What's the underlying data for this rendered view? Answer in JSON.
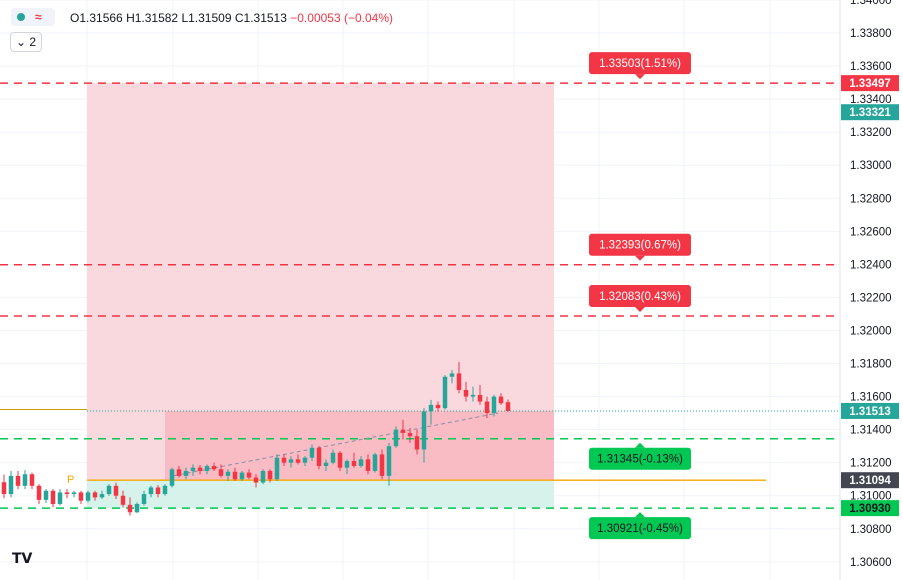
{
  "legend": {
    "open": "O1.31566",
    "high": "H1.31582",
    "low": "L1.31509",
    "close": "C1.31513",
    "change": "−0.00053 (−0.04%)"
  },
  "indicator_toggle": {
    "icon": "eye-wave-icon",
    "collapse_label": "⌄ 2"
  },
  "logo": "TV",
  "colors": {
    "up": "#26a69a",
    "down": "#f23645",
    "zone_loss": "#f9d5da",
    "zone_profit": "#d6f2ea",
    "grid": "#f0f3fa",
    "orange": "#f7a600",
    "green": "#00c853",
    "red": "#f23645"
  },
  "chart_data": {
    "type": "candlestick",
    "price_axis": {
      "ylim": [
        1.3049,
        1.34
      ],
      "ticks": [
        "1.34000",
        "1.33800",
        "1.33600",
        "1.33400",
        "1.33200",
        "1.33000",
        "1.32800",
        "1.32600",
        "1.32400",
        "1.32200",
        "1.32000",
        "1.31800",
        "1.31600",
        "1.31400",
        "1.31200",
        "1.31000",
        "1.30800",
        "1.30600"
      ],
      "tick_values": [
        1.34,
        1.338,
        1.336,
        1.334,
        1.332,
        1.33,
        1.328,
        1.326,
        1.324,
        1.322,
        1.32,
        1.318,
        1.316,
        1.314,
        1.312,
        1.31,
        1.308,
        1.306
      ]
    },
    "levels": [
      {
        "price": 1.33497,
        "label": "1.33503(1.51%)",
        "color": "red",
        "axis_label": "1.33497"
      },
      {
        "price": 1.32398,
        "label": "1.32393(0.67%)",
        "color": "red"
      },
      {
        "price": 1.32088,
        "label": "1.32083(0.43%)",
        "color": "red"
      },
      {
        "price": 1.31345,
        "label": "1.31345(-0.13%)",
        "color": "green"
      },
      {
        "price": 1.30925,
        "label": "1.30921(-0.45%)",
        "color": "green",
        "axis_label": "1.30930"
      }
    ],
    "entry_price": 1.31094,
    "entry_axis_label": "1.31094",
    "current_price": 1.31513,
    "current_axis_label": "1.31513",
    "blue_axis_label": "1.33321",
    "blue_axis_price": 1.33321,
    "pivot_label": "P",
    "candles": [
      [
        1.31082,
        1.31128,
        1.30985,
        1.3101
      ],
      [
        1.3101,
        1.3115,
        1.3099,
        1.3112
      ],
      [
        1.3112,
        1.3115,
        1.3104,
        1.3106
      ],
      [
        1.3106,
        1.31155,
        1.3104,
        1.3113
      ],
      [
        1.3113,
        1.3114,
        1.3104,
        1.3106
      ],
      [
        1.3106,
        1.3107,
        1.3095,
        1.30975
      ],
      [
        1.30975,
        1.3104,
        1.30955,
        1.3103
      ],
      [
        1.3103,
        1.3104,
        1.3093,
        1.3095
      ],
      [
        1.3095,
        1.3104,
        1.3094,
        1.3102
      ],
      [
        1.3102,
        1.3104,
        1.30985,
        1.3101
      ],
      [
        1.3101,
        1.3103,
        1.3099,
        1.3102
      ],
      [
        1.3102,
        1.3103,
        1.3095,
        1.3097
      ],
      [
        1.3097,
        1.3103,
        1.3096,
        1.3102
      ],
      [
        1.3102,
        1.3103,
        1.3097,
        1.3099
      ],
      [
        1.3099,
        1.3103,
        1.3098,
        1.3101
      ],
      [
        1.3101,
        1.3107,
        1.31,
        1.3106
      ],
      [
        1.3106,
        1.3108,
        1.3098,
        1.31
      ],
      [
        1.31,
        1.3103,
        1.3093,
        1.30945
      ],
      [
        1.30945,
        1.3099,
        1.3088,
        1.309
      ],
      [
        1.309,
        1.3096,
        1.30895,
        1.3095
      ],
      [
        1.3095,
        1.3103,
        1.3094,
        1.3101
      ],
      [
        1.3101,
        1.3106,
        1.3099,
        1.3105
      ],
      [
        1.3105,
        1.31065,
        1.3099,
        1.3101
      ],
      [
        1.3101,
        1.3107,
        1.31,
        1.3106
      ],
      [
        1.3106,
        1.3117,
        1.3105,
        1.3116
      ],
      [
        1.3116,
        1.3118,
        1.3111,
        1.3112
      ],
      [
        1.3112,
        1.3117,
        1.311,
        1.3115
      ],
      [
        1.3115,
        1.3119,
        1.3112,
        1.3117
      ],
      [
        1.3117,
        1.31185,
        1.3113,
        1.3115
      ],
      [
        1.3115,
        1.3119,
        1.3113,
        1.3118
      ],
      [
        1.3118,
        1.312,
        1.3115,
        1.3116
      ],
      [
        1.3116,
        1.3119,
        1.3111,
        1.3112
      ],
      [
        1.3112,
        1.3116,
        1.3109,
        1.31145
      ],
      [
        1.31145,
        1.3117,
        1.3109,
        1.311
      ],
      [
        1.311,
        1.3115,
        1.3109,
        1.3114
      ],
      [
        1.3114,
        1.3116,
        1.311,
        1.3111
      ],
      [
        1.3111,
        1.3113,
        1.3105,
        1.3108
      ],
      [
        1.3108,
        1.3116,
        1.3107,
        1.3115
      ],
      [
        1.3115,
        1.3116,
        1.3108,
        1.311
      ],
      [
        1.311,
        1.3125,
        1.3109,
        1.3123
      ],
      [
        1.3123,
        1.3125,
        1.3118,
        1.312
      ],
      [
        1.312,
        1.3124,
        1.3117,
        1.3122
      ],
      [
        1.3122,
        1.3125,
        1.3119,
        1.312
      ],
      [
        1.312,
        1.3124,
        1.3118,
        1.3123
      ],
      [
        1.3123,
        1.3131,
        1.3121,
        1.3129
      ],
      [
        1.3129,
        1.313,
        1.3116,
        1.3118
      ],
      [
        1.3118,
        1.3122,
        1.3115,
        1.312
      ],
      [
        1.312,
        1.3128,
        1.3119,
        1.3126
      ],
      [
        1.3126,
        1.3127,
        1.3115,
        1.3117
      ],
      [
        1.3117,
        1.3122,
        1.3113,
        1.3121
      ],
      [
        1.3121,
        1.3126,
        1.3117,
        1.3118
      ],
      [
        1.3118,
        1.3124,
        1.3117,
        1.3122
      ],
      [
        1.3122,
        1.3125,
        1.3113,
        1.3115
      ],
      [
        1.3115,
        1.3126,
        1.3114,
        1.3125
      ],
      [
        1.3125,
        1.3128,
        1.311,
        1.3112
      ],
      [
        1.3112,
        1.3132,
        1.3106,
        1.313
      ],
      [
        1.313,
        1.3142,
        1.3129,
        1.314
      ],
      [
        1.314,
        1.3146,
        1.3134,
        1.3138
      ],
      [
        1.3138,
        1.3141,
        1.3132,
        1.3136
      ],
      [
        1.3136,
        1.314,
        1.3125,
        1.3128
      ],
      [
        1.3128,
        1.3153,
        1.312,
        1.3151
      ],
      [
        1.3151,
        1.3158,
        1.3143,
        1.3155
      ],
      [
        1.3155,
        1.3157,
        1.3151,
        1.3153
      ],
      [
        1.3153,
        1.3173,
        1.3152,
        1.3172
      ],
      [
        1.3172,
        1.3176,
        1.3168,
        1.3174
      ],
      [
        1.3174,
        1.3181,
        1.3162,
        1.3164
      ],
      [
        1.3164,
        1.3169,
        1.3157,
        1.316
      ],
      [
        1.316,
        1.3166,
        1.3157,
        1.3161
      ],
      [
        1.3161,
        1.3167,
        1.3155,
        1.3157
      ],
      [
        1.3157,
        1.316,
        1.3147,
        1.315
      ],
      [
        1.315,
        1.3161,
        1.3148,
        1.316
      ],
      [
        1.316,
        1.3162,
        1.3155,
        1.3156
      ],
      [
        1.31566,
        1.31582,
        1.31509,
        1.31513
      ]
    ]
  }
}
